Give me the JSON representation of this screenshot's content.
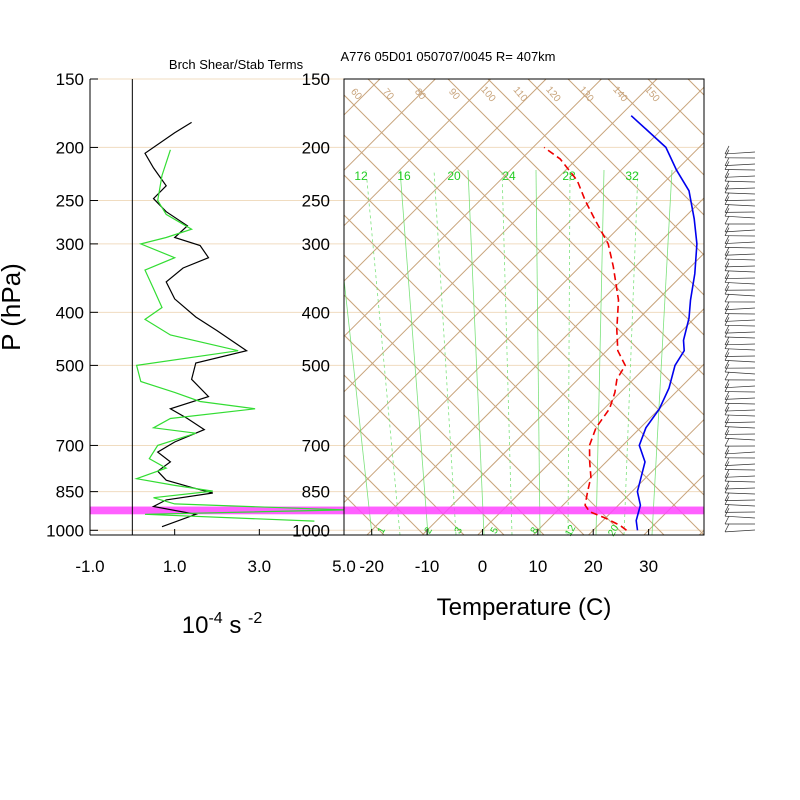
{
  "titles": {
    "left": "Brch Shear/Stab Terms",
    "right": "A776 05D01 050707/0045 R= 407km"
  },
  "colors": {
    "pressure_line": "#f0dcc0",
    "skew_line": "#c8a47c",
    "mixing": "#66dd66",
    "temperature": "#0000ee",
    "dewpoint": "#ee0000",
    "shear_black": "#000000",
    "shear_green": "#33dd33",
    "highlight": "#ff44ff"
  },
  "chart_data": [
    {
      "type": "line",
      "panel": "left",
      "title": "Brch Shear/Stab Terms",
      "ylabel": "P (hPa)",
      "xlabel": "10-4 s -2",
      "xlabel_main": "10",
      "xlabel_sup1": "-4",
      "xlabel_mid": " s ",
      "xlabel_sup2": "-2",
      "xlim": [
        -1.0,
        5.0
      ],
      "x_ticks": [
        -1.0,
        1.0,
        3.0,
        5.0
      ],
      "x_tick_labels": [
        "-1.0",
        "1.0",
        "3.0",
        "5.0"
      ],
      "zero_line_x": 0.0,
      "y_scale": "log",
      "ylim": [
        1020,
        150
      ],
      "y_ticks": [
        150,
        200,
        250,
        300,
        400,
        500,
        700,
        850,
        1000
      ],
      "y_tick_labels": [
        "150",
        "200",
        "250",
        "300",
        "400",
        "500",
        "700",
        "850",
        "1000"
      ],
      "highlight_band_hpa": [
        905,
        935
      ],
      "series": [
        {
          "color": "black",
          "points": [
            [
              1.4,
              180
            ],
            [
              1.0,
              188
            ],
            [
              0.3,
              205
            ],
            [
              0.5,
              218
            ],
            [
              0.8,
              235
            ],
            [
              0.5,
              248
            ],
            [
              0.8,
              262
            ],
            [
              1.3,
              278
            ],
            [
              1.0,
              292
            ],
            [
              1.6,
              302
            ],
            [
              1.8,
              318
            ],
            [
              1.2,
              332
            ],
            [
              0.8,
              352
            ],
            [
              1.0,
              378
            ],
            [
              1.5,
              408
            ],
            [
              2.0,
              432
            ],
            [
              2.7,
              470
            ],
            [
              1.5,
              495
            ],
            [
              1.4,
              530
            ],
            [
              1.8,
              570
            ],
            [
              0.9,
              600
            ],
            [
              1.3,
              625
            ],
            [
              1.7,
              655
            ],
            [
              1.0,
              690
            ],
            [
              0.6,
              720
            ],
            [
              0.9,
              750
            ],
            [
              0.6,
              780
            ],
            [
              0.8,
              810
            ],
            [
              1.4,
              835
            ],
            [
              1.9,
              855
            ],
            [
              0.8,
              880
            ],
            [
              0.5,
              905
            ],
            [
              1.5,
              935
            ],
            [
              0.7,
              985
            ]
          ]
        },
        {
          "color": "green",
          "points": [
            [
              0.9,
              202
            ],
            [
              0.7,
              225
            ],
            [
              0.6,
              250
            ],
            [
              0.8,
              265
            ],
            [
              1.4,
              282
            ],
            [
              0.8,
              292
            ],
            [
              0.2,
              300
            ],
            [
              1.0,
              318
            ],
            [
              0.3,
              335
            ],
            [
              0.5,
              362
            ],
            [
              0.7,
              392
            ],
            [
              0.3,
              412
            ],
            [
              0.9,
              440
            ],
            [
              2.5,
              470
            ],
            [
              0.1,
              500
            ],
            [
              0.2,
              535
            ],
            [
              1.0,
              560
            ],
            [
              1.6,
              582
            ],
            [
              2.9,
              600
            ],
            [
              0.9,
              625
            ],
            [
              0.5,
              650
            ],
            [
              1.5,
              665
            ],
            [
              0.6,
              700
            ],
            [
              0.4,
              740
            ],
            [
              0.8,
              770
            ],
            [
              0.1,
              805
            ],
            [
              1.0,
              828
            ],
            [
              1.9,
              848
            ],
            [
              0.5,
              872
            ],
            [
              1.0,
              895
            ],
            [
              5.0,
              918
            ],
            [
              0.3,
              935
            ],
            [
              4.3,
              962
            ]
          ]
        }
      ]
    },
    {
      "type": "line",
      "panel": "right",
      "subtype": "skew-t",
      "title": "A776 05D01 050707/0045 R= 407km",
      "xlabel": "Temperature (C)",
      "xlim": [
        -25,
        40
      ],
      "x_ticks": [
        -20,
        -10,
        0,
        10,
        20,
        30
      ],
      "x_tick_labels": [
        "-20",
        "-10",
        "0",
        "10",
        "20",
        "30"
      ],
      "y_scale": "log",
      "ylim": [
        1020,
        150
      ],
      "y_ticks": [
        150,
        200,
        250,
        300,
        400,
        500,
        700,
        850,
        1000
      ],
      "y_tick_labels": [
        "150",
        "200",
        "250",
        "300",
        "400",
        "500",
        "700",
        "850",
        "1000"
      ],
      "mixing_ratio_labels_top": [
        "12",
        "16",
        "20",
        "24",
        "28",
        "32"
      ],
      "mixing_ratio_labels_bottom": [
        "1",
        "2",
        "3",
        "5",
        "8",
        "12",
        "20"
      ],
      "theta_labels_top": [
        "60",
        "70",
        "80",
        "90",
        "100",
        "110",
        "120",
        "130",
        "140",
        "150"
      ],
      "highlight_band_hpa": [
        905,
        935
      ],
      "series": [
        {
          "name": "temperature",
          "color": "blue",
          "points": [
            [
              28,
              1000
            ],
            [
              26,
              960
            ],
            [
              24,
              900
            ],
            [
              21,
              850
            ],
            [
              17,
              750
            ],
            [
              13,
              700
            ],
            [
              11,
              650
            ],
            [
              10,
              600
            ],
            [
              8,
              550
            ],
            [
              5,
              500
            ],
            [
              4,
              470
            ],
            [
              2,
              450
            ],
            [
              -1,
              410
            ],
            [
              -4,
              380
            ],
            [
              -8,
              340
            ],
            [
              -13,
              300
            ],
            [
              -18,
              270
            ],
            [
              -24,
              240
            ],
            [
              -30,
              220
            ],
            [
              -36,
              200
            ],
            [
              -43,
              185
            ],
            [
              -48,
              175
            ]
          ]
        },
        {
          "name": "dewpoint",
          "color": "red",
          "points": [
            [
              26,
              1000
            ],
            [
              24,
              980
            ],
            [
              20,
              950
            ],
            [
              16,
              925
            ],
            [
              14,
              900
            ],
            [
              12,
              850
            ],
            [
              10,
              800
            ],
            [
              7,
              750
            ],
            [
              4,
              700
            ],
            [
              2,
              650
            ],
            [
              1,
              600
            ],
            [
              -1,
              560
            ],
            [
              -3,
              530
            ],
            [
              -4,
              500
            ],
            [
              -8,
              470
            ],
            [
              -12,
              430
            ],
            [
              -17,
              380
            ],
            [
              -24,
              330
            ],
            [
              -29,
              300
            ],
            [
              -36,
              270
            ],
            [
              -41,
              250
            ],
            [
              -46,
              230
            ],
            [
              -53,
              210
            ],
            [
              -58,
              200
            ]
          ]
        }
      ]
    }
  ]
}
